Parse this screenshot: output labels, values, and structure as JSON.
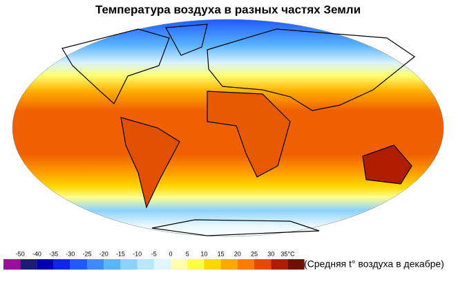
{
  "title": "Температура воздуха в разных частях Земли",
  "legend": {
    "ticks": [
      -50,
      -40,
      -35,
      -30,
      -25,
      -20,
      -15,
      -10,
      -5,
      0,
      5,
      10,
      15,
      20,
      25,
      30,
      {
        "value": 35,
        "label": "35°C"
      }
    ],
    "colors": [
      "#9c0f9c",
      "#1c1c78",
      "#0000b0",
      "#0a28e6",
      "#1e5aff",
      "#3c8cff",
      "#5ab4ff",
      "#8cd2ff",
      "#b8e8ff",
      "#e0f6ff",
      "#ffffb0",
      "#ffff46",
      "#ffd700",
      "#ffa800",
      "#ff7a00",
      "#e64800",
      "#b01c00",
      "#701000"
    ],
    "caption": "(Средняя t° воздуха в декабре)"
  }
}
